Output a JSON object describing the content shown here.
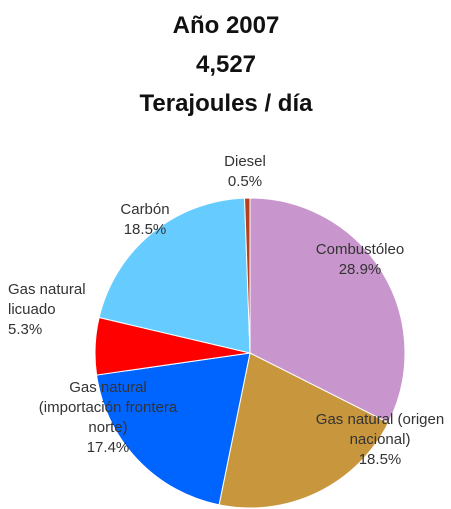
{
  "chart_data": {
    "type": "pie",
    "title": [
      "Año 2007",
      "4,527",
      "Terajoules / día"
    ],
    "categories": [
      "Combustóleo",
      "Gas natural (origen nacional)",
      "Gas natural (importación frontera norte)",
      "Gas natural licuado",
      "Carbón",
      "Diesel"
    ],
    "values": [
      28.9,
      18.5,
      17.4,
      5.3,
      18.5,
      0.5
    ],
    "value_labels": [
      "28.9%",
      "18.5%",
      "17.4%",
      "5.3%",
      "18.5%",
      "0.5%"
    ],
    "colors": [
      "#c896cc",
      "#c8963c",
      "#0064ff",
      "#ff0000",
      "#66ccff",
      "#b5401e"
    ]
  }
}
